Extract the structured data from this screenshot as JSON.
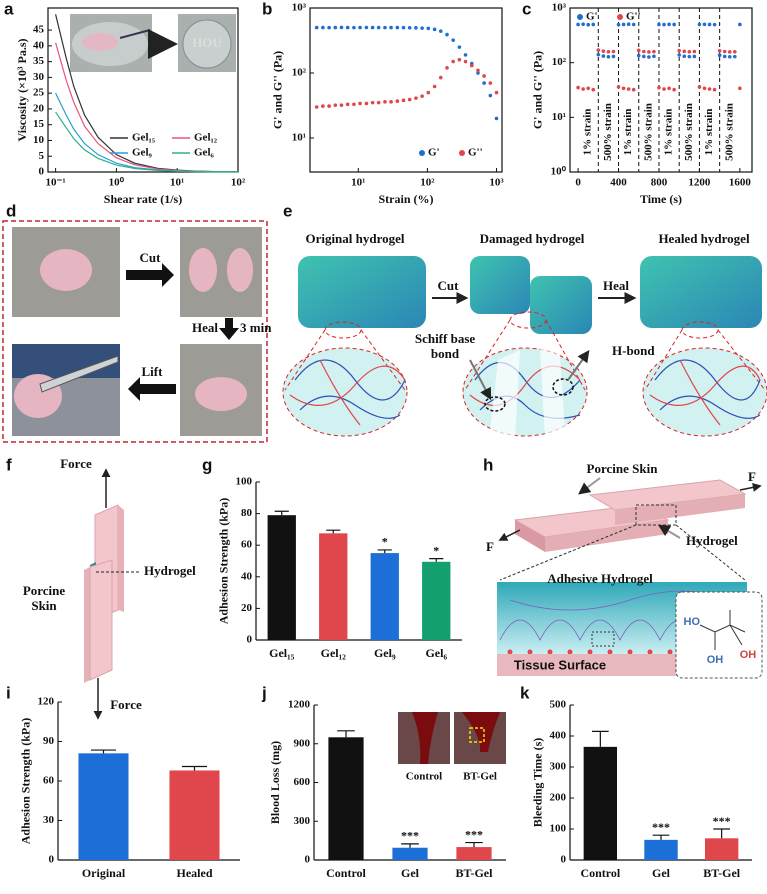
{
  "chart_data": [
    {
      "panel": "a",
      "type": "line",
      "xlabel": "Shear rate (1/s)",
      "ylabel": "Viscosity (×10³ Pa.s)",
      "xscale": "log",
      "x": [
        0.1,
        0.15,
        0.2,
        0.3,
        0.5,
        1,
        2,
        5,
        10,
        20,
        50,
        100
      ],
      "xlim": [
        0.075,
        100
      ],
      "xticks": [
        {
          "value": 0.1,
          "label": "10⁻¹"
        },
        {
          "value": 1,
          "label": "10⁰"
        },
        {
          "value": 10,
          "label": "10¹"
        },
        {
          "value": 100,
          "label": "10²"
        }
      ],
      "ylim": [
        0,
        52
      ],
      "yticks": [
        0,
        5,
        10,
        15,
        20,
        25,
        30,
        35,
        40,
        45
      ],
      "legend": "lower right",
      "series": [
        {
          "name": "Gel₁₅",
          "color": "#333333",
          "values": [
            50,
            36,
            27,
            18,
            11,
            5.5,
            2.8,
            1.1,
            0.6,
            0.3,
            0.1,
            0.05
          ]
        },
        {
          "name": "Gel₁₂",
          "color": "#e8557a",
          "values": [
            41,
            29,
            22,
            14.5,
            9,
            4.5,
            2.3,
            0.9,
            0.5,
            0.25,
            0.1,
            0.05
          ]
        },
        {
          "name": "Gel₉",
          "color": "#2a9fd0",
          "values": [
            25,
            18,
            13.5,
            9,
            5.5,
            2.8,
            1.4,
            0.6,
            0.3,
            0.15,
            0.06,
            0.03
          ]
        },
        {
          "name": "Gel₆",
          "color": "#2bb08a",
          "values": [
            19,
            14,
            10.5,
            7,
            4.3,
            2.2,
            1.1,
            0.45,
            0.22,
            0.11,
            0.05,
            0.02
          ]
        }
      ]
    },
    {
      "panel": "b",
      "type": "scatter",
      "xlabel": "Strain (%)",
      "ylabel": "G' and G'' (Pa)",
      "xscale": "log",
      "yscale": "log",
      "x": [
        2.5,
        3.07,
        3.78,
        4.65,
        5.71,
        7.02,
        8.64,
        10.6,
        13.1,
        16.1,
        19.7,
        24.3,
        29.8,
        36.7,
        45.1,
        55.4,
        68.2,
        83.8,
        103,
        127,
        156,
        192,
        236,
        290,
        356,
        438,
        539,
        662,
        814,
        1000
      ],
      "xlim": [
        2,
        1200
      ],
      "xticks": [
        {
          "value": 10,
          "label": "10¹"
        },
        {
          "value": 100,
          "label": "10²"
        },
        {
          "value": 1000,
          "label": "10³"
        }
      ],
      "ylim": [
        3,
        1000
      ],
      "yticks": [
        {
          "value": 10,
          "label": "10¹"
        },
        {
          "value": 100,
          "label": "10²"
        },
        {
          "value": 1000,
          "label": "10³"
        }
      ],
      "legend": "lower right",
      "series": [
        {
          "name": "G'",
          "color": "#1f6fd1",
          "values": [
            500,
            500,
            498,
            500,
            502,
            500,
            499,
            500,
            501,
            500,
            500,
            499,
            500,
            500,
            498,
            497,
            495,
            490,
            485,
            470,
            440,
            390,
            320,
            250,
            190,
            140,
            100,
            70,
            45,
            20
          ]
        },
        {
          "name": "G''",
          "color": "#e0474c",
          "values": [
            30,
            31,
            31,
            32,
            32,
            33,
            33,
            34,
            34,
            35,
            35,
            36,
            36,
            37,
            38,
            39,
            41,
            44,
            50,
            62,
            85,
            120,
            150,
            160,
            150,
            130,
            110,
            90,
            70,
            50
          ]
        }
      ]
    },
    {
      "panel": "c",
      "type": "scatter",
      "xlabel": "Time (s)",
      "ylabel": "G' and G'' (Pa)",
      "yscale": "log",
      "x": [
        0,
        50,
        100,
        150,
        200,
        250,
        300,
        350,
        400,
        450,
        500,
        550,
        600,
        650,
        700,
        750,
        800,
        850,
        900,
        950,
        1000,
        1050,
        1100,
        1150,
        1200,
        1250,
        1300,
        1350,
        1400,
        1450,
        1500,
        1550,
        1600
      ],
      "xlim": [
        -80,
        1720
      ],
      "xticks": [
        0,
        400,
        800,
        1200,
        1600
      ],
      "ylim": [
        1,
        1000
      ],
      "yticks": [
        {
          "value": 1,
          "label": "10⁰"
        },
        {
          "value": 10,
          "label": "10¹"
        },
        {
          "value": 100,
          "label": "10²"
        },
        {
          "value": 1000,
          "label": "10³"
        }
      ],
      "legend": "upper left",
      "vlines": [
        200,
        400,
        600,
        800,
        1000,
        1200,
        1400
      ],
      "annotations": [
        {
          "text": "1% strain",
          "x": 100
        },
        {
          "text": "500% strain",
          "x": 300
        },
        {
          "text": "1% strain",
          "x": 500
        },
        {
          "text": "500% strain",
          "x": 700
        },
        {
          "text": "1% strain",
          "x": 900
        },
        {
          "text": "500% strain",
          "x": 1100
        },
        {
          "text": "1% strain",
          "x": 1300
        },
        {
          "text": "500% strain",
          "x": 1500
        }
      ],
      "series": [
        {
          "name": "G'",
          "color": "#1f6fd1",
          "values": [
            500,
            505,
            495,
            500,
            140,
            132,
            128,
            130,
            495,
            500,
            505,
            498,
            135,
            130,
            127,
            131,
            500,
            497,
            503,
            500,
            138,
            131,
            129,
            130,
            498,
            502,
            500,
            496,
            137,
            130,
            128,
            129,
            500
          ]
        },
        {
          "name": "G''",
          "color": "#e0474c",
          "values": [
            35,
            33,
            34,
            32,
            170,
            162,
            158,
            160,
            36,
            34,
            33,
            32,
            168,
            160,
            157,
            159,
            35,
            33,
            34,
            32,
            166,
            161,
            158,
            160,
            36,
            34,
            33,
            32,
            165,
            160,
            157,
            158,
            34
          ]
        }
      ]
    },
    {
      "panel": "g",
      "type": "bar",
      "ylabel": "Adhesion Strength (kPa)",
      "categories": [
        "Gel₁₅",
        "Gel₁₂",
        "Gel₉",
        "Gel₆"
      ],
      "values": [
        79,
        67.5,
        55,
        49.5
      ],
      "errors": [
        2.5,
        2,
        2,
        2
      ],
      "colors": [
        "#111111",
        "#e0474c",
        "#1c6fd6",
        "#14a06e"
      ],
      "annotations": [
        null,
        null,
        "*",
        "*"
      ],
      "ylim": [
        0,
        100
      ],
      "yticks": [
        0,
        20,
        40,
        60,
        80,
        100
      ]
    },
    {
      "panel": "i",
      "type": "bar",
      "ylabel": "Adhesion Strength (kPa)",
      "categories": [
        "Original",
        "Healed"
      ],
      "values": [
        81,
        68
      ],
      "errors": [
        2.5,
        3
      ],
      "colors": [
        "#1c6fd6",
        "#e0474c"
      ],
      "ylim": [
        0,
        120
      ],
      "yticks": [
        0,
        30,
        60,
        90,
        120
      ]
    },
    {
      "panel": "j",
      "type": "bar",
      "ylabel": "Blood Loss (mg)",
      "categories": [
        "Control",
        "Gel",
        "BT-Gel"
      ],
      "values": [
        950,
        95,
        100
      ],
      "errors": [
        50,
        30,
        35
      ],
      "colors": [
        "#111111",
        "#1c6fd6",
        "#e0474c"
      ],
      "annotations": [
        null,
        "***",
        "***"
      ],
      "ylim": [
        0,
        1200
      ],
      "yticks": [
        0,
        300,
        600,
        900,
        1200
      ],
      "inset_labels": [
        "Control",
        "BT-Gel"
      ]
    },
    {
      "panel": "k",
      "type": "bar",
      "ylabel": "Bleeding Time (s)",
      "categories": [
        "Control",
        "Gel",
        "BT-Gel"
      ],
      "values": [
        365,
        65,
        70
      ],
      "errors": [
        50,
        15,
        30
      ],
      "colors": [
        "#111111",
        "#1c6fd6",
        "#e0474c"
      ],
      "annotations": [
        null,
        "***",
        "***"
      ],
      "ylim": [
        0,
        500
      ],
      "yticks": [
        0,
        100,
        200,
        300,
        400,
        500
      ]
    }
  ],
  "figure": {
    "d": {
      "panel": "d",
      "cut": "Cut",
      "heal": "Heal",
      "heal_time": "3 min",
      "lift": "Lift"
    },
    "e": {
      "panel": "e",
      "original": "Original hydrogel",
      "damaged": "Damaged hydrogel",
      "healed": "Healed hydrogel",
      "cut": "Cut",
      "heal": "Heal",
      "schiff": [
        "Schiff base",
        "bond"
      ],
      "hbond": "H-bond"
    },
    "f": {
      "panel": "f",
      "force_top": "Force",
      "force_bottom": "Force",
      "skin": [
        "Porcine",
        "Skin"
      ],
      "hydrogel": "Hydrogel"
    },
    "h": {
      "panel": "h",
      "skin": "Porcine Skin",
      "f_right": "F",
      "f_left": "F",
      "hydrogel": "Hydrogel",
      "adhesive": "Adhesive Hydrogel",
      "tissue": "Tissue Surface",
      "ho": "HO",
      "oh1": "OH",
      "oh2": "OH"
    }
  }
}
